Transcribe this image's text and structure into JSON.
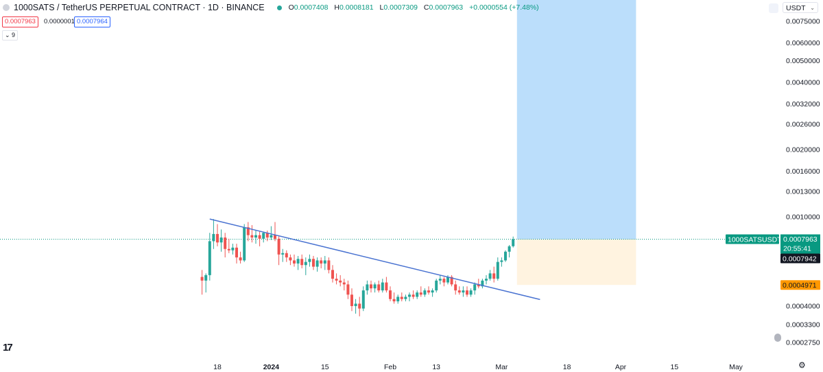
{
  "header": {
    "title": "1000SATS / TetherUS PERPETUAL CONTRACT · 1D · BINANCE",
    "ohlc": {
      "o_label": "O",
      "o": "0.0007408",
      "h_label": "H",
      "h": "0.0008181",
      "l_label": "L",
      "l": "0.0007309",
      "c_label": "C",
      "c": "0.0007963",
      "change": "+0.0000554 (+7.48%)"
    }
  },
  "order_boxes": {
    "bid": "0.0007963",
    "spread": "0.0000001",
    "ask": "0.0007964"
  },
  "indicator_count": "9",
  "currency_selector": "USDT",
  "colors": {
    "up": "#26a69a",
    "down": "#ef5350",
    "trendline": "#4a73d1",
    "target_zone": "#bbdefb",
    "stop_zone": "#fff3e0",
    "last_price": "#089981",
    "stop_label": "#ff9800"
  },
  "chart_data": {
    "type": "candlestick",
    "symbol": "1000SATSUSDT.P",
    "y_scale": "log",
    "y_ticks": [
      "0.0075000",
      "0.0060000",
      "0.0050000",
      "0.0040000",
      "0.0032000",
      "0.0026000",
      "0.0020000",
      "0.0016000",
      "0.0013000",
      "0.0010000",
      "0.0004000",
      "0.0003300",
      "0.0002750"
    ],
    "x_ticks": [
      "18",
      "2024",
      "15",
      "Feb",
      "13",
      "Mar",
      "18",
      "Apr",
      "15",
      "May"
    ],
    "price_labels": {
      "symbol": "1000SATSUSDT.P",
      "last": "0.0007963",
      "countdown": "20:55:41",
      "prev": "0.0007942",
      "stop": "0.0004971"
    },
    "trendline": {
      "from": [
        "2023-12-16",
        0.00098
      ],
      "to": [
        "2024-03-11",
        0.000428
      ]
    },
    "target_zone": {
      "from": "2024-03-05",
      "to": "2024-04-05",
      "bottom": 0.0007963,
      "top": 0.0075
    },
    "stop_zone": {
      "from": "2024-03-05",
      "to": "2024-04-05",
      "bottom": 0.0004971,
      "top": 0.0007963
    },
    "candles": [
      [
        "2023-12-14",
        0.00054,
        0.00058,
        0.00045,
        0.00052
      ],
      [
        "2023-12-15",
        0.00052,
        0.00056,
        0.00046,
        0.00055
      ],
      [
        "2023-12-16",
        0.00055,
        0.00085,
        0.00052,
        0.00078
      ],
      [
        "2023-12-17",
        0.00078,
        0.00098,
        0.00072,
        0.00084
      ],
      [
        "2023-12-18",
        0.00084,
        0.00093,
        0.00074,
        0.00077
      ],
      [
        "2023-12-19",
        0.00077,
        0.00088,
        0.0007,
        0.00081
      ],
      [
        "2023-12-20",
        0.00081,
        0.00085,
        0.00066,
        0.00072
      ],
      [
        "2023-12-21",
        0.00072,
        0.0008,
        0.00069,
        0.00071
      ],
      [
        "2023-12-22",
        0.00071,
        0.00076,
        0.00068,
        0.00073
      ],
      [
        "2023-12-23",
        0.00073,
        0.00076,
        0.00062,
        0.00066
      ],
      [
        "2023-12-24",
        0.00066,
        0.0007,
        0.00062,
        0.00064
      ],
      [
        "2023-12-25",
        0.00064,
        0.00093,
        0.00063,
        0.0009
      ],
      [
        "2023-12-26",
        0.0009,
        0.00095,
        0.00078,
        0.00083
      ],
      [
        "2023-12-27",
        0.00083,
        0.00092,
        0.00077,
        0.00081
      ],
      [
        "2023-12-28",
        0.00081,
        0.00087,
        0.00076,
        0.00083
      ],
      [
        "2023-12-29",
        0.00083,
        0.00086,
        0.00074,
        0.0008
      ],
      [
        "2023-12-30",
        0.0008,
        0.00086,
        0.00077,
        0.00085
      ],
      [
        "2023-12-31",
        0.00085,
        0.00087,
        0.00078,
        0.00081
      ],
      [
        "2024-01-01",
        0.00081,
        0.00091,
        0.00079,
        0.00083
      ],
      [
        "2024-01-02",
        0.00083,
        0.00095,
        0.00078,
        0.0008
      ],
      [
        "2024-01-03",
        0.0008,
        0.00082,
        0.00061,
        0.00068
      ],
      [
        "2024-01-04",
        0.00068,
        0.00072,
        0.00063,
        0.00069
      ],
      [
        "2024-01-05",
        0.00069,
        0.00071,
        0.00063,
        0.00066
      ],
      [
        "2024-01-06",
        0.00066,
        0.00068,
        0.00061,
        0.00064
      ],
      [
        "2024-01-07",
        0.00064,
        0.00068,
        0.0006,
        0.00062
      ],
      [
        "2024-01-08",
        0.00062,
        0.00067,
        0.00058,
        0.00065
      ],
      [
        "2024-01-09",
        0.00065,
        0.00068,
        0.00059,
        0.00061
      ],
      [
        "2024-01-10",
        0.00061,
        0.00066,
        0.00055,
        0.00063
      ],
      [
        "2024-01-11",
        0.00063,
        0.00068,
        0.0006,
        0.00065
      ],
      [
        "2024-01-12",
        0.00065,
        0.00067,
        0.00058,
        0.0006
      ],
      [
        "2024-01-13",
        0.0006,
        0.00066,
        0.00057,
        0.00064
      ],
      [
        "2024-01-14",
        0.00064,
        0.00066,
        0.00059,
        0.00062
      ],
      [
        "2024-01-15",
        0.00062,
        0.00067,
        0.00058,
        0.00064
      ],
      [
        "2024-01-16",
        0.00064,
        0.00066,
        0.00056,
        0.00058
      ],
      [
        "2024-01-17",
        0.00058,
        0.00061,
        0.00051,
        0.00053
      ],
      [
        "2024-01-18",
        0.00053,
        0.00056,
        0.0005,
        0.00052
      ],
      [
        "2024-01-19",
        0.00052,
        0.00055,
        0.00049,
        0.00051
      ],
      [
        "2024-01-20",
        0.00051,
        0.00053,
        0.00047,
        0.0005
      ],
      [
        "2024-01-21",
        0.0005,
        0.00052,
        0.00043,
        0.00045
      ],
      [
        "2024-01-22",
        0.00045,
        0.00048,
        0.00038,
        0.0004
      ],
      [
        "2024-01-23",
        0.0004,
        0.00043,
        0.00037,
        0.00041
      ],
      [
        "2024-01-24",
        0.00041,
        0.00044,
        0.00036,
        0.00039
      ],
      [
        "2024-01-25",
        0.00039,
        0.00049,
        0.00038,
        0.00047
      ],
      [
        "2024-01-26",
        0.00047,
        0.00052,
        0.00045,
        0.0005
      ],
      [
        "2024-01-27",
        0.0005,
        0.00052,
        0.00046,
        0.00048
      ],
      [
        "2024-01-28",
        0.00048,
        0.00051,
        0.00046,
        0.0005
      ],
      [
        "2024-01-29",
        0.0005,
        0.00052,
        0.00046,
        0.00047
      ],
      [
        "2024-01-30",
        0.00047,
        0.00053,
        0.00046,
        0.00051
      ],
      [
        "2024-01-31",
        0.00051,
        0.00054,
        0.00046,
        0.00047
      ],
      [
        "2024-02-01",
        0.00047,
        0.00049,
        0.00042,
        0.00043
      ],
      [
        "2024-02-02",
        0.00043,
        0.00046,
        0.00041,
        0.00042
      ],
      [
        "2024-02-03",
        0.00042,
        0.00045,
        0.00041,
        0.00044
      ],
      [
        "2024-02-04",
        0.00044,
        0.00046,
        0.00042,
        0.00043
      ],
      [
        "2024-02-05",
        0.00043,
        0.00045,
        0.00042,
        0.00044
      ],
      [
        "2024-02-06",
        0.00044,
        0.00046,
        0.00042,
        0.00045
      ],
      [
        "2024-02-07",
        0.00045,
        0.00047,
        0.00043,
        0.00044
      ],
      [
        "2024-02-08",
        0.00044,
        0.00047,
        0.00043,
        0.00046
      ],
      [
        "2024-02-09",
        0.00046,
        0.00049,
        0.00044,
        0.00045
      ],
      [
        "2024-02-10",
        0.00045,
        0.00048,
        0.00044,
        0.00047
      ],
      [
        "2024-02-11",
        0.00047,
        0.00049,
        0.00045,
        0.00046
      ],
      [
        "2024-02-12",
        0.00046,
        0.00048,
        0.00044,
        0.00047
      ],
      [
        "2024-02-13",
        0.00047,
        0.00053,
        0.00046,
        0.00052
      ],
      [
        "2024-02-14",
        0.00052,
        0.00055,
        0.0005,
        0.00053
      ],
      [
        "2024-02-15",
        0.00053,
        0.00054,
        0.00049,
        0.00051
      ],
      [
        "2024-02-16",
        0.00051,
        0.00055,
        0.0005,
        0.00054
      ],
      [
        "2024-02-17",
        0.00054,
        0.00055,
        0.00049,
        0.0005
      ],
      [
        "2024-02-18",
        0.0005,
        0.00052,
        0.00045,
        0.00047
      ],
      [
        "2024-02-19",
        0.00047,
        0.00049,
        0.00045,
        0.00046
      ],
      [
        "2024-02-20",
        0.00046,
        0.00049,
        0.00044,
        0.00047
      ],
      [
        "2024-02-21",
        0.00047,
        0.00049,
        0.00044,
        0.00045
      ],
      [
        "2024-02-22",
        0.00045,
        0.00048,
        0.00044,
        0.00047
      ],
      [
        "2024-02-23",
        0.00047,
        0.00051,
        0.00045,
        0.0005
      ],
      [
        "2024-02-24",
        0.0005,
        0.00053,
        0.00048,
        0.00049
      ],
      [
        "2024-02-25",
        0.00049,
        0.00053,
        0.00048,
        0.00052
      ],
      [
        "2024-02-26",
        0.00052,
        0.00055,
        0.0005,
        0.00053
      ],
      [
        "2024-02-27",
        0.00053,
        0.00058,
        0.00052,
        0.00056
      ],
      [
        "2024-02-28",
        0.00056,
        0.0006,
        0.00051,
        0.00053
      ],
      [
        "2024-02-29",
        0.00053,
        0.00066,
        0.00052,
        0.00063
      ],
      [
        "2024-03-01",
        0.00063,
        0.00066,
        0.0006,
        0.00064
      ],
      [
        "2024-03-02",
        0.00064,
        0.00071,
        0.00063,
        0.0007
      ],
      [
        "2024-03-03",
        0.0007,
        0.00075,
        0.00066,
        0.00074
      ],
      [
        "2024-03-04",
        0.0007408,
        0.0008181,
        0.0007309,
        0.0007963
      ]
    ]
  }
}
